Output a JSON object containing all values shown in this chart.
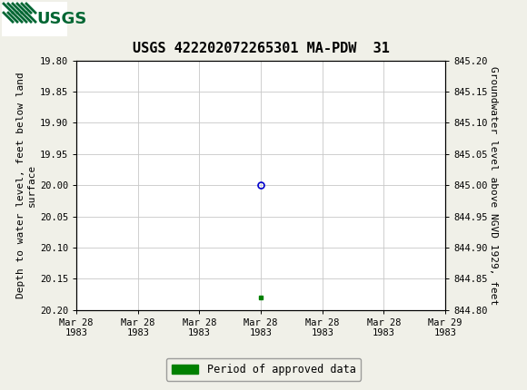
{
  "title": "USGS 422202072265301 MA-PDW  31",
  "ylabel_left": "Depth to water level, feet below land\nsurface",
  "ylabel_right": "Groundwater level above NGVD 1929, feet",
  "ylim_left": [
    19.8,
    20.2
  ],
  "ylim_right": [
    844.8,
    845.2
  ],
  "y_ticks_left": [
    19.8,
    19.85,
    19.9,
    19.95,
    20.0,
    20.05,
    20.1,
    20.15,
    20.2
  ],
  "y_ticks_right": [
    844.8,
    844.85,
    844.9,
    844.95,
    845.0,
    845.05,
    845.1,
    845.15,
    845.2
  ],
  "data_point_x": 12,
  "data_point_y": 20.0,
  "data_point_color": "#0000cc",
  "approved_marker_x": 12,
  "approved_marker_y": 20.18,
  "approved_marker_color": "#008000",
  "header_color": "#006633",
  "header_text_color": "#ffffff",
  "background_color": "#f0f0e8",
  "plot_bg_color": "#ffffff",
  "grid_color": "#c8c8c8",
  "font_family": "monospace",
  "title_fontsize": 11,
  "tick_fontsize": 7.5,
  "label_fontsize": 8,
  "legend_label": "Period of approved data",
  "legend_color": "#008000",
  "x_tick_positions": [
    0,
    4,
    8,
    12,
    16,
    20,
    24
  ],
  "x_tick_labels_top": [
    "Mar 28",
    "Mar 28",
    "Mar 28",
    "Mar 28",
    "Mar 28",
    "Mar 28",
    "Mar 29"
  ],
  "x_tick_labels_bot": [
    "1983",
    "1983",
    "1983",
    "1983",
    "1983",
    "1983",
    "1983"
  ],
  "xlim": [
    0,
    24
  ]
}
